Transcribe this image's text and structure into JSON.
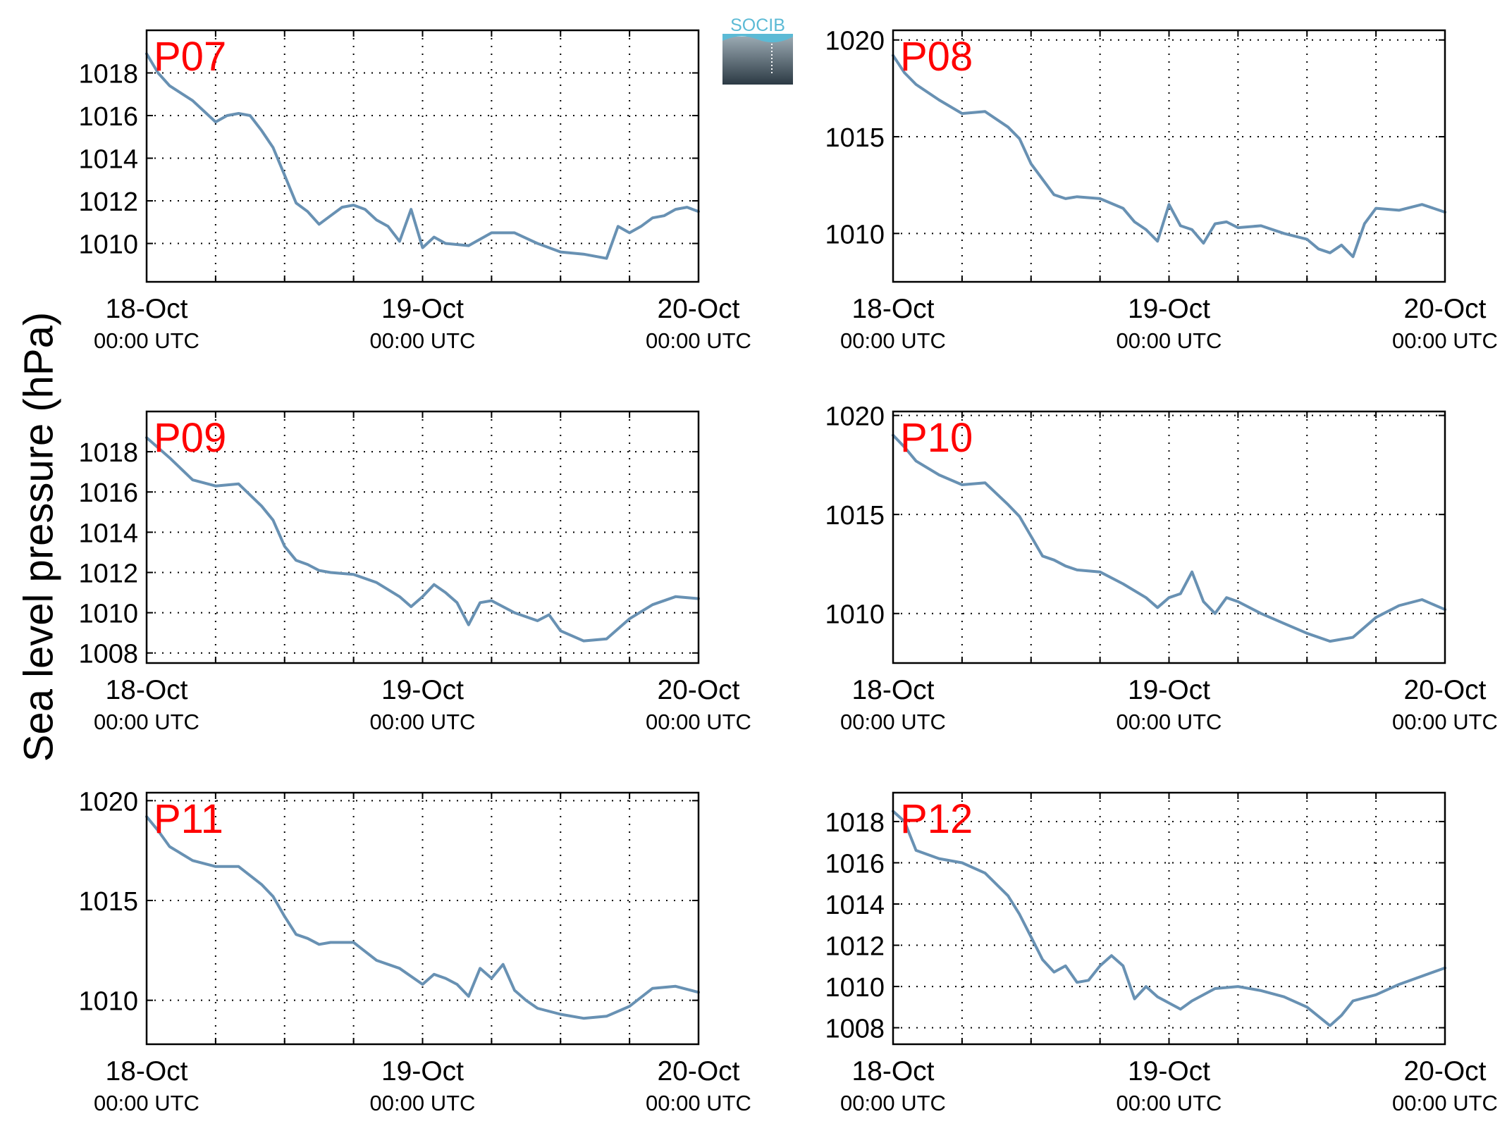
{
  "ylabel": "Sea level pressure (hPa)",
  "logo_text": "SOCIB",
  "colors": {
    "line": "#6891B3",
    "station_label": "#FF0000",
    "grid": "#000000",
    "logo_top": "#5BBAD5",
    "logo_bottom": "#2C3A44"
  },
  "x_tick_labels": [
    {
      "date": "18-Oct",
      "time": "00:00 UTC"
    },
    {
      "date": "19-Oct",
      "time": "00:00 UTC"
    },
    {
      "date": "20-Oct",
      "time": "00:00 UTC"
    }
  ],
  "chart_data": [
    {
      "type": "line",
      "station": "P07",
      "xlim": [
        "2017-10-18 00:00",
        "2017-10-20 00:00"
      ],
      "ylim": [
        1008.2,
        1020
      ],
      "yticks": [
        1010,
        1012,
        1014,
        1016,
        1018
      ],
      "grid": true,
      "series": [
        {
          "x": [
            "2017-10-18 00:00",
            "2017-10-18 01:00",
            "2017-10-18 02:00",
            "2017-10-18 04:00",
            "2017-10-18 06:00",
            "2017-10-18 07:00",
            "2017-10-18 08:00",
            "2017-10-18 09:00",
            "2017-10-18 10:00",
            "2017-10-18 11:00",
            "2017-10-18 12:00",
            "2017-10-18 13:00",
            "2017-10-18 14:00",
            "2017-10-18 15:00",
            "2017-10-18 16:00",
            "2017-10-18 17:00",
            "2017-10-18 18:00",
            "2017-10-18 19:00",
            "2017-10-18 20:00",
            "2017-10-18 21:00",
            "2017-10-18 22:00",
            "2017-10-18 23:00",
            "2017-10-19 00:00",
            "2017-10-19 01:00",
            "2017-10-19 02:00",
            "2017-10-19 04:00",
            "2017-10-19 06:00",
            "2017-10-19 08:00",
            "2017-10-19 10:00",
            "2017-10-19 12:00",
            "2017-10-19 14:00",
            "2017-10-19 16:00",
            "2017-10-19 17:00",
            "2017-10-19 18:00",
            "2017-10-19 19:00",
            "2017-10-19 20:00",
            "2017-10-19 21:00",
            "2017-10-19 22:00",
            "2017-10-19 23:00",
            "2017-10-20 00:00"
          ],
          "y": [
            1018.9,
            1018.0,
            1017.4,
            1016.7,
            1015.7,
            1016.0,
            1016.1,
            1016.0,
            1015.3,
            1014.5,
            1013.2,
            1011.9,
            1011.5,
            1010.9,
            1011.3,
            1011.7,
            1011.8,
            1011.6,
            1011.1,
            1010.8,
            1010.1,
            1011.6,
            1009.8,
            1010.3,
            1010.0,
            1009.9,
            1010.5,
            1010.5,
            1010.0,
            1009.6,
            1009.5,
            1009.3,
            1010.8,
            1010.5,
            1010.8,
            1011.2,
            1011.3,
            1011.6,
            1011.7,
            1011.5
          ]
        }
      ]
    },
    {
      "type": "line",
      "station": "P08",
      "xlim": [
        "2017-10-18 00:00",
        "2017-10-20 00:00"
      ],
      "ylim": [
        1007.5,
        1020.5
      ],
      "yticks": [
        1010,
        1015,
        1020
      ],
      "grid": true,
      "series": [
        {
          "x": [
            "2017-10-18 00:00",
            "2017-10-18 01:00",
            "2017-10-18 02:00",
            "2017-10-18 04:00",
            "2017-10-18 06:00",
            "2017-10-18 08:00",
            "2017-10-18 10:00",
            "2017-10-18 11:00",
            "2017-10-18 12:00",
            "2017-10-18 13:00",
            "2017-10-18 14:00",
            "2017-10-18 15:00",
            "2017-10-18 16:00",
            "2017-10-18 18:00",
            "2017-10-18 20:00",
            "2017-10-18 21:00",
            "2017-10-18 22:00",
            "2017-10-18 23:00",
            "2017-10-19 00:00",
            "2017-10-19 01:00",
            "2017-10-19 02:00",
            "2017-10-19 03:00",
            "2017-10-19 04:00",
            "2017-10-19 05:00",
            "2017-10-19 06:00",
            "2017-10-19 08:00",
            "2017-10-19 10:00",
            "2017-10-19 12:00",
            "2017-10-19 13:00",
            "2017-10-19 14:00",
            "2017-10-19 15:00",
            "2017-10-19 16:00",
            "2017-10-19 17:00",
            "2017-10-19 18:00",
            "2017-10-19 20:00",
            "2017-10-19 22:00",
            "2017-10-19 23:00",
            "2017-10-20 00:00"
          ],
          "y": [
            1019.2,
            1018.3,
            1017.7,
            1016.9,
            1016.2,
            1016.3,
            1015.5,
            1014.9,
            1013.6,
            1012.8,
            1012.0,
            1011.8,
            1011.9,
            1011.8,
            1011.3,
            1010.6,
            1010.2,
            1009.6,
            1011.5,
            1010.4,
            1010.2,
            1009.5,
            1010.5,
            1010.6,
            1010.3,
            1010.4,
            1010.0,
            1009.7,
            1009.2,
            1009.0,
            1009.4,
            1008.8,
            1010.5,
            1011.3,
            1011.2,
            1011.5,
            1011.3,
            1011.1
          ]
        }
      ]
    },
    {
      "type": "line",
      "station": "P09",
      "xlim": [
        "2017-10-18 00:00",
        "2017-10-20 00:00"
      ],
      "ylim": [
        1007.5,
        1020
      ],
      "yticks": [
        1008,
        1010,
        1012,
        1014,
        1016,
        1018
      ],
      "grid": true,
      "series": [
        {
          "x": [
            "2017-10-18 00:00",
            "2017-10-18 01:00",
            "2017-10-18 02:00",
            "2017-10-18 04:00",
            "2017-10-18 06:00",
            "2017-10-18 08:00",
            "2017-10-18 10:00",
            "2017-10-18 11:00",
            "2017-10-18 12:00",
            "2017-10-18 13:00",
            "2017-10-18 14:00",
            "2017-10-18 15:00",
            "2017-10-18 16:00",
            "2017-10-18 18:00",
            "2017-10-18 20:00",
            "2017-10-18 22:00",
            "2017-10-18 23:00",
            "2017-10-19 00:00",
            "2017-10-19 01:00",
            "2017-10-19 02:00",
            "2017-10-19 03:00",
            "2017-10-19 04:00",
            "2017-10-19 05:00",
            "2017-10-19 06:00",
            "2017-10-19 08:00",
            "2017-10-19 10:00",
            "2017-10-19 11:00",
            "2017-10-19 12:00",
            "2017-10-19 14:00",
            "2017-10-19 16:00",
            "2017-10-19 18:00",
            "2017-10-19 20:00",
            "2017-10-19 22:00",
            "2017-10-20 00:00"
          ],
          "y": [
            1018.7,
            1018.2,
            1017.7,
            1016.6,
            1016.3,
            1016.4,
            1015.3,
            1014.6,
            1013.3,
            1012.6,
            1012.4,
            1012.1,
            1012.0,
            1011.9,
            1011.5,
            1010.8,
            1010.3,
            1010.8,
            1011.4,
            1011.0,
            1010.5,
            1009.4,
            1010.5,
            1010.6,
            1010.0,
            1009.6,
            1009.9,
            1009.1,
            1008.6,
            1008.7,
            1009.7,
            1010.4,
            1010.8,
            1010.7
          ]
        }
      ]
    },
    {
      "type": "line",
      "station": "P10",
      "xlim": [
        "2017-10-18 00:00",
        "2017-10-20 00:00"
      ],
      "ylim": [
        1007.5,
        1020.2
      ],
      "yticks": [
        1010,
        1015,
        1020
      ],
      "grid": true,
      "series": [
        {
          "x": [
            "2017-10-18 00:00",
            "2017-10-18 01:00",
            "2017-10-18 02:00",
            "2017-10-18 04:00",
            "2017-10-18 06:00",
            "2017-10-18 08:00",
            "2017-10-18 10:00",
            "2017-10-18 11:00",
            "2017-10-18 12:00",
            "2017-10-18 13:00",
            "2017-10-18 14:00",
            "2017-10-18 15:00",
            "2017-10-18 16:00",
            "2017-10-18 18:00",
            "2017-10-18 20:00",
            "2017-10-18 22:00",
            "2017-10-18 23:00",
            "2017-10-19 00:00",
            "2017-10-19 01:00",
            "2017-10-19 02:00",
            "2017-10-19 03:00",
            "2017-10-19 04:00",
            "2017-10-19 05:00",
            "2017-10-19 06:00",
            "2017-10-19 08:00",
            "2017-10-19 10:00",
            "2017-10-19 12:00",
            "2017-10-19 14:00",
            "2017-10-19 16:00",
            "2017-10-19 18:00",
            "2017-10-19 20:00",
            "2017-10-19 22:00",
            "2017-10-20 00:00"
          ],
          "y": [
            1019.0,
            1018.4,
            1017.7,
            1017.0,
            1016.5,
            1016.6,
            1015.5,
            1014.9,
            1013.9,
            1012.9,
            1012.7,
            1012.4,
            1012.2,
            1012.1,
            1011.5,
            1010.8,
            1010.3,
            1010.8,
            1011.0,
            1012.1,
            1010.6,
            1010.0,
            1010.8,
            1010.6,
            1010.0,
            1009.5,
            1009.0,
            1008.6,
            1008.8,
            1009.8,
            1010.4,
            1010.7,
            1010.2
          ]
        }
      ]
    },
    {
      "type": "line",
      "station": "P11",
      "xlim": [
        "2017-10-18 00:00",
        "2017-10-20 00:00"
      ],
      "ylim": [
        1007.8,
        1020.4
      ],
      "yticks": [
        1010,
        1015,
        1020
      ],
      "grid": true,
      "series": [
        {
          "x": [
            "2017-10-18 00:00",
            "2017-10-18 01:00",
            "2017-10-18 02:00",
            "2017-10-18 04:00",
            "2017-10-18 06:00",
            "2017-10-18 08:00",
            "2017-10-18 10:00",
            "2017-10-18 11:00",
            "2017-10-18 12:00",
            "2017-10-18 13:00",
            "2017-10-18 14:00",
            "2017-10-18 15:00",
            "2017-10-18 16:00",
            "2017-10-18 18:00",
            "2017-10-18 20:00",
            "2017-10-18 22:00",
            "2017-10-19 00:00",
            "2017-10-19 01:00",
            "2017-10-19 02:00",
            "2017-10-19 03:00",
            "2017-10-19 04:00",
            "2017-10-19 05:00",
            "2017-10-19 06:00",
            "2017-10-19 07:00",
            "2017-10-19 08:00",
            "2017-10-19 09:00",
            "2017-10-19 10:00",
            "2017-10-19 12:00",
            "2017-10-19 14:00",
            "2017-10-19 16:00",
            "2017-10-19 18:00",
            "2017-10-19 20:00",
            "2017-10-19 22:00",
            "2017-10-20 00:00"
          ],
          "y": [
            1019.2,
            1018.5,
            1017.7,
            1017.0,
            1016.7,
            1016.7,
            1015.8,
            1015.2,
            1014.2,
            1013.3,
            1013.1,
            1012.8,
            1012.9,
            1012.9,
            1012.0,
            1011.6,
            1010.8,
            1011.3,
            1011.1,
            1010.8,
            1010.2,
            1011.6,
            1011.1,
            1011.8,
            1010.5,
            1010.0,
            1009.6,
            1009.3,
            1009.1,
            1009.2,
            1009.7,
            1010.6,
            1010.7,
            1010.4
          ]
        }
      ]
    },
    {
      "type": "line",
      "station": "P12",
      "xlim": [
        "2017-10-18 00:00",
        "2017-10-20 00:00"
      ],
      "ylim": [
        1007.2,
        1019.4
      ],
      "yticks": [
        1008,
        1010,
        1012,
        1014,
        1016,
        1018
      ],
      "grid": true,
      "series": [
        {
          "x": [
            "2017-10-18 00:00",
            "2017-10-18 01:00",
            "2017-10-18 02:00",
            "2017-10-18 04:00",
            "2017-10-18 06:00",
            "2017-10-18 08:00",
            "2017-10-18 10:00",
            "2017-10-18 11:00",
            "2017-10-18 12:00",
            "2017-10-18 13:00",
            "2017-10-18 14:00",
            "2017-10-18 15:00",
            "2017-10-18 16:00",
            "2017-10-18 17:00",
            "2017-10-18 18:00",
            "2017-10-18 19:00",
            "2017-10-18 20:00",
            "2017-10-18 21:00",
            "2017-10-18 22:00",
            "2017-10-18 23:00",
            "2017-10-19 00:00",
            "2017-10-19 01:00",
            "2017-10-19 02:00",
            "2017-10-19 04:00",
            "2017-10-19 06:00",
            "2017-10-19 08:00",
            "2017-10-19 10:00",
            "2017-10-19 12:00",
            "2017-10-19 14:00",
            "2017-10-19 15:00",
            "2017-10-19 16:00",
            "2017-10-19 18:00",
            "2017-10-19 20:00",
            "2017-10-19 22:00",
            "2017-10-20 00:00"
          ],
          "y": [
            1018.5,
            1018.0,
            1016.6,
            1016.2,
            1016.0,
            1015.5,
            1014.4,
            1013.5,
            1012.4,
            1011.3,
            1010.7,
            1011.0,
            1010.2,
            1010.3,
            1011.0,
            1011.5,
            1011.0,
            1009.4,
            1010.0,
            1009.5,
            1009.2,
            1008.9,
            1009.3,
            1009.9,
            1010.0,
            1009.8,
            1009.5,
            1009.0,
            1008.1,
            1008.6,
            1009.3,
            1009.6,
            1010.1,
            1010.5,
            1010.9
          ]
        }
      ]
    }
  ]
}
